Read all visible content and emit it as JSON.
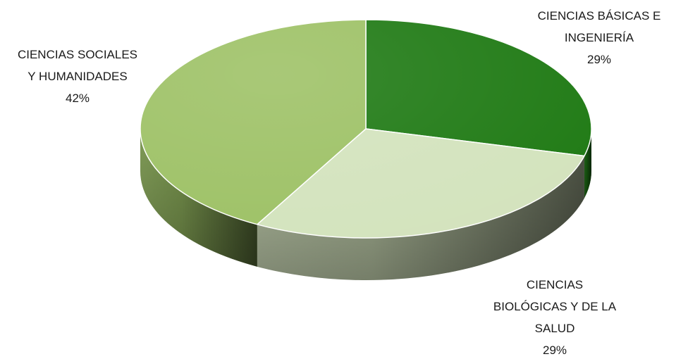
{
  "chart_data": {
    "type": "pie",
    "style": "3d",
    "slices": [
      {
        "label_lines": [
          "CIENCIAS BÁSICAS E",
          "INGENIERÍA"
        ],
        "value": 29,
        "value_label": "29%",
        "color": "#1f7a14"
      },
      {
        "label_lines": [
          "CIENCIAS",
          "BIOLÓGICAS Y DE LA",
          "SALUD"
        ],
        "value": 29,
        "value_label": "29%",
        "color": "#d3e3bd"
      },
      {
        "label_lines": [
          "CIENCIAS SOCIALES",
          "Y HUMANIDADES"
        ],
        "value": 42,
        "value_label": "42%",
        "color": "#9dc165"
      }
    ],
    "legend": "none"
  }
}
